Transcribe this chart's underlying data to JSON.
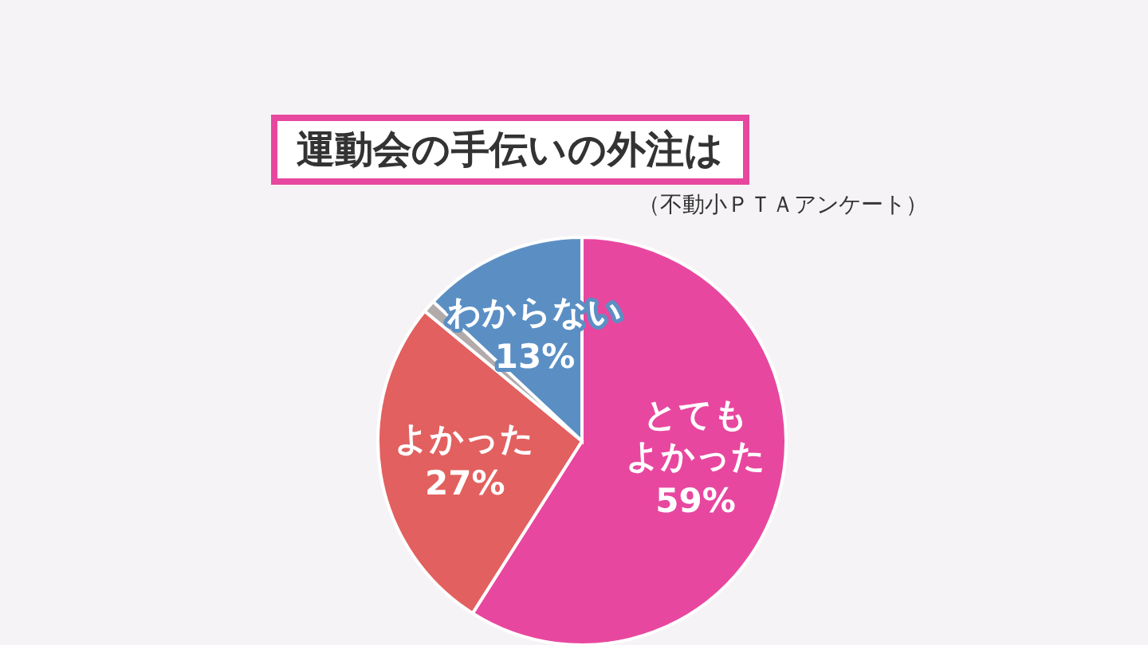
{
  "chart_data": {
    "type": "pie",
    "title": "運動会の手伝いの外注は",
    "subtitle": "（不動小ＰＴＡアンケート）",
    "categories": [
      "とてもよかった",
      "よかった",
      null,
      "わからない"
    ],
    "values": [
      59,
      27,
      1,
      13
    ],
    "colors": [
      "#e8479f",
      "#e2605f",
      "#b3aaaa",
      "#5b8fc4"
    ],
    "value_labels": [
      "59%",
      "27%",
      null,
      "13%"
    ]
  }
}
